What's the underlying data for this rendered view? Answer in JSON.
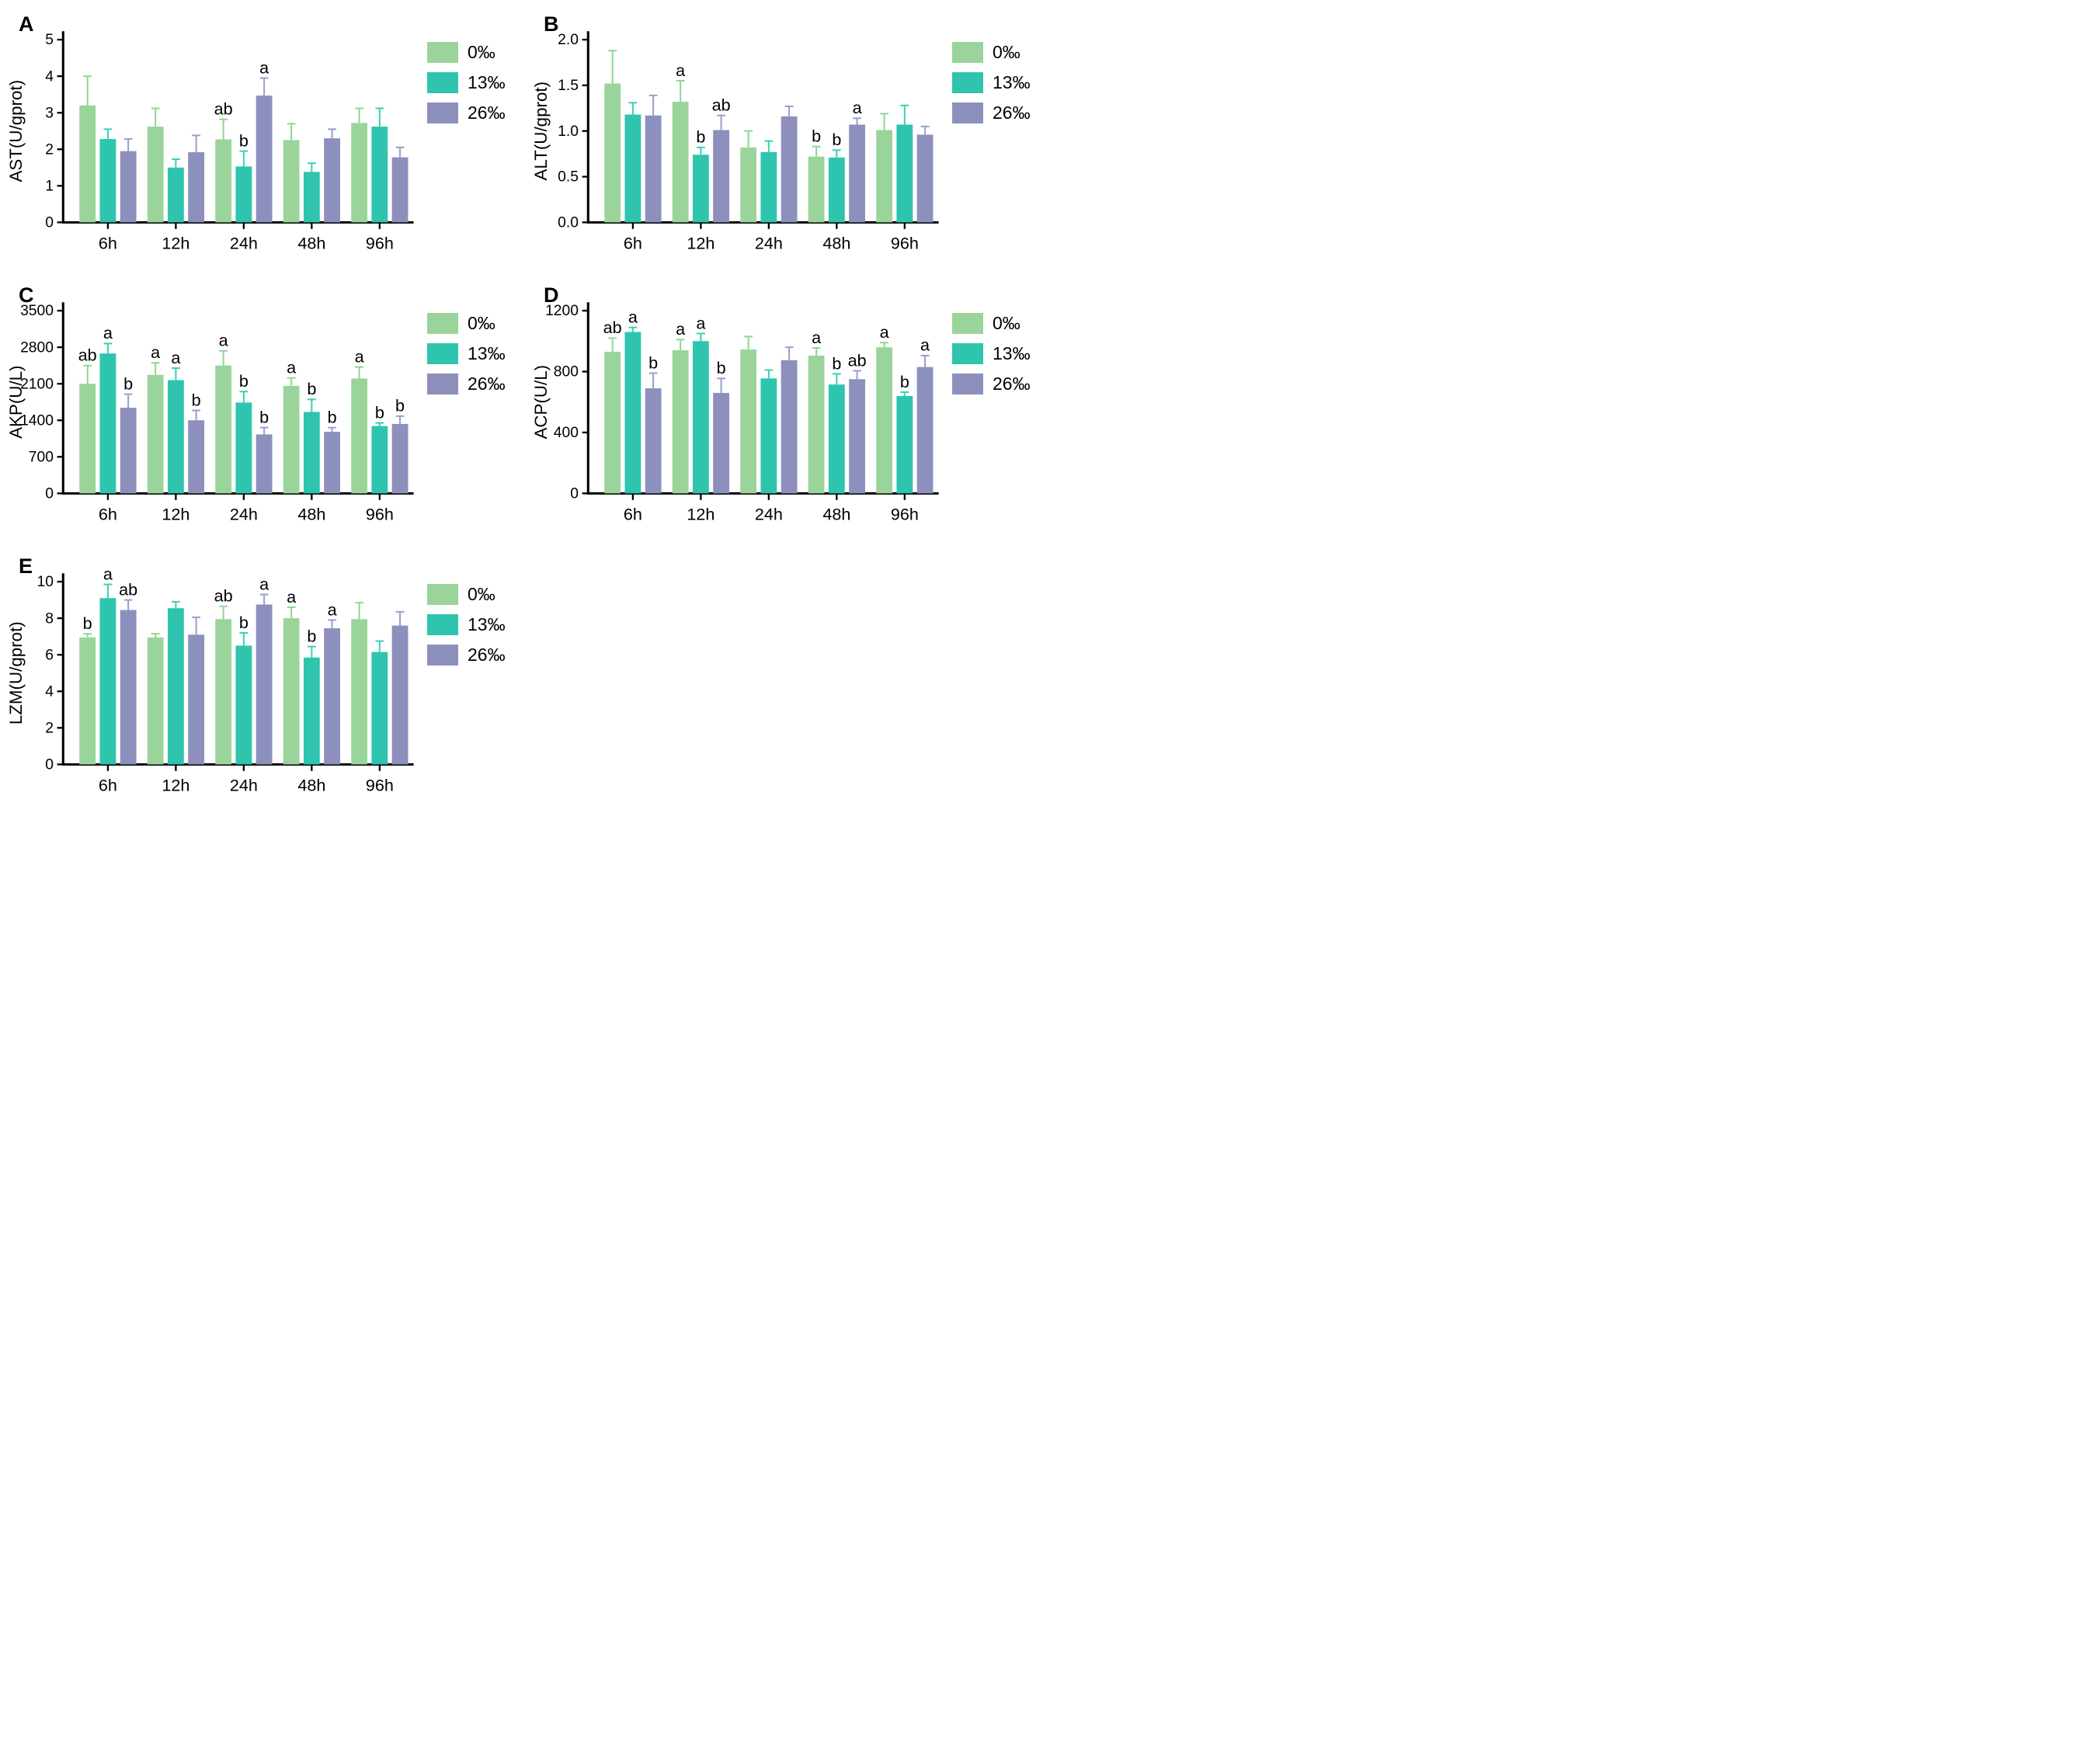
{
  "legend": {
    "items": [
      {
        "label": "0‰",
        "color": "#9ad49a",
        "err_color": "#8fd78f"
      },
      {
        "label": "13‰",
        "color": "#2fc4ad",
        "err_color": "#3ad0b5"
      },
      {
        "label": "26‰",
        "color": "#8d90bd",
        "err_color": "#9a9ecb"
      }
    ]
  },
  "chart_data": [
    {
      "type": "bar",
      "panel_label": "A",
      "ylabel": "AST(U/gprot)",
      "xlabel": "",
      "ylim": [
        0,
        5
      ],
      "ytick_values": [
        0,
        1,
        2,
        3,
        4,
        5
      ],
      "ytick_labels": [
        "0",
        "1",
        "2",
        "3",
        "4",
        "5"
      ],
      "categories": [
        "6h",
        "12h",
        "24h",
        "48h",
        "96h"
      ],
      "legend_position": "right",
      "grid": false,
      "series": [
        {
          "name": "0‰",
          "values": [
            3.2,
            2.62,
            2.27,
            2.25,
            2.72
          ],
          "errors": [
            0.8,
            0.5,
            0.55,
            0.45,
            0.4
          ],
          "letters": [
            "",
            "",
            "ab",
            "",
            ""
          ]
        },
        {
          "name": "13‰",
          "values": [
            2.28,
            1.5,
            1.53,
            1.38,
            2.62
          ],
          "errors": [
            0.27,
            0.23,
            0.42,
            0.24,
            0.5
          ],
          "letters": [
            "",
            "",
            "b",
            "",
            ""
          ]
        },
        {
          "name": "26‰",
          "values": [
            1.95,
            1.92,
            3.47,
            2.3,
            1.78
          ],
          "errors": [
            0.33,
            0.46,
            0.48,
            0.25,
            0.27
          ],
          "letters": [
            "",
            "",
            "a",
            "",
            ""
          ]
        }
      ]
    },
    {
      "type": "bar",
      "panel_label": "B",
      "ylabel": "ALT(U/gprot)",
      "xlabel": "",
      "ylim": [
        0,
        2.0
      ],
      "ytick_values": [
        0,
        0.5,
        1.0,
        1.5,
        2.0
      ],
      "ytick_labels": [
        "0.0",
        "0.5",
        "1.0",
        "1.5",
        "2.0"
      ],
      "categories": [
        "6h",
        "12h",
        "24h",
        "48h",
        "96h"
      ],
      "legend_position": "right",
      "grid": false,
      "series": [
        {
          "name": "0‰",
          "values": [
            1.52,
            1.32,
            0.82,
            0.72,
            1.01
          ],
          "errors": [
            0.36,
            0.23,
            0.18,
            0.11,
            0.18
          ],
          "letters": [
            "",
            "a",
            "",
            "b",
            ""
          ]
        },
        {
          "name": "13‰",
          "values": [
            1.18,
            0.74,
            0.77,
            0.71,
            1.07
          ],
          "errors": [
            0.13,
            0.08,
            0.12,
            0.08,
            0.21
          ],
          "letters": [
            "",
            "b",
            "",
            "b",
            ""
          ]
        },
        {
          "name": "26‰",
          "values": [
            1.17,
            1.01,
            1.16,
            1.07,
            0.96
          ],
          "errors": [
            0.22,
            0.16,
            0.11,
            0.07,
            0.09
          ],
          "letters": [
            "",
            "ab",
            "",
            "a",
            ""
          ]
        }
      ]
    },
    {
      "type": "bar",
      "panel_label": "C",
      "ylabel": "AKP(U/L)",
      "xlabel": "",
      "ylim": [
        0,
        3500
      ],
      "ytick_values": [
        0,
        700,
        1400,
        2100,
        2800,
        3500
      ],
      "ytick_labels": [
        "0",
        "700",
        "1400",
        "2100",
        "2800",
        "3500"
      ],
      "categories": [
        "6h",
        "12h",
        "24h",
        "48h",
        "96h"
      ],
      "legend_position": "right",
      "grid": false,
      "series": [
        {
          "name": "0‰",
          "values": [
            2100,
            2270,
            2450,
            2060,
            2200
          ],
          "errors": [
            350,
            230,
            280,
            150,
            220
          ],
          "letters": [
            "ab",
            "a",
            "a",
            "a",
            "a"
          ]
        },
        {
          "name": "13‰",
          "values": [
            2680,
            2170,
            1740,
            1560,
            1290
          ],
          "errors": [
            190,
            230,
            210,
            240,
            60
          ],
          "letters": [
            "a",
            "a",
            "b",
            "b",
            "b"
          ]
        },
        {
          "name": "26‰",
          "values": [
            1640,
            1400,
            1130,
            1180,
            1330
          ],
          "errors": [
            260,
            190,
            130,
            80,
            150
          ],
          "letters": [
            "b",
            "b",
            "b",
            "b",
            "b"
          ]
        }
      ]
    },
    {
      "type": "bar",
      "panel_label": "D",
      "ylabel": "ACP(U/L)",
      "xlabel": "",
      "ylim": [
        0,
        1200
      ],
      "ytick_values": [
        0,
        400,
        800,
        1200
      ],
      "ytick_labels": [
        "0",
        "400",
        "800",
        "1200"
      ],
      "categories": [
        "6h",
        "12h",
        "24h",
        "48h",
        "96h"
      ],
      "legend_position": "right",
      "grid": false,
      "series": [
        {
          "name": "0‰",
          "values": [
            930,
            940,
            945,
            905,
            960
          ],
          "errors": [
            90,
            70,
            85,
            50,
            30
          ],
          "letters": [
            "ab",
            "a",
            "",
            "a",
            "a"
          ]
        },
        {
          "name": "13‰",
          "values": [
            1060,
            1000,
            755,
            715,
            640
          ],
          "errors": [
            30,
            50,
            55,
            70,
            25
          ],
          "letters": [
            "a",
            "a",
            "",
            "b",
            "b"
          ]
        },
        {
          "name": "26‰",
          "values": [
            690,
            660,
            875,
            750,
            830
          ],
          "errors": [
            100,
            95,
            85,
            55,
            75
          ],
          "letters": [
            "b",
            "b",
            "",
            "ab",
            "a"
          ]
        }
      ]
    },
    {
      "type": "bar",
      "panel_label": "E",
      "ylabel": "LZM(U/gprot)",
      "xlabel": "",
      "ylim": [
        0,
        10
      ],
      "ytick_values": [
        0,
        2,
        4,
        6,
        8,
        10
      ],
      "ytick_labels": [
        "0",
        "2",
        "4",
        "6",
        "8",
        "10"
      ],
      "categories": [
        "6h",
        "12h",
        "24h",
        "48h",
        "96h"
      ],
      "legend_position": "right",
      "grid": false,
      "series": [
        {
          "name": "0‰",
          "values": [
            6.95,
            6.95,
            7.95,
            8.0,
            7.95
          ],
          "errors": [
            0.2,
            0.2,
            0.7,
            0.6,
            0.9
          ],
          "letters": [
            "b",
            "",
            "ab",
            "a",
            ""
          ]
        },
        {
          "name": "13‰",
          "values": [
            9.1,
            8.55,
            6.5,
            5.85,
            6.15
          ],
          "errors": [
            0.75,
            0.35,
            0.7,
            0.6,
            0.6
          ],
          "letters": [
            "a",
            "",
            "b",
            "b",
            ""
          ]
        },
        {
          "name": "26‰",
          "values": [
            8.45,
            7.1,
            8.75,
            7.45,
            7.6
          ],
          "errors": [
            0.55,
            0.95,
            0.55,
            0.45,
            0.75
          ],
          "letters": [
            "ab",
            "",
            "a",
            "a",
            ""
          ]
        }
      ]
    }
  ]
}
